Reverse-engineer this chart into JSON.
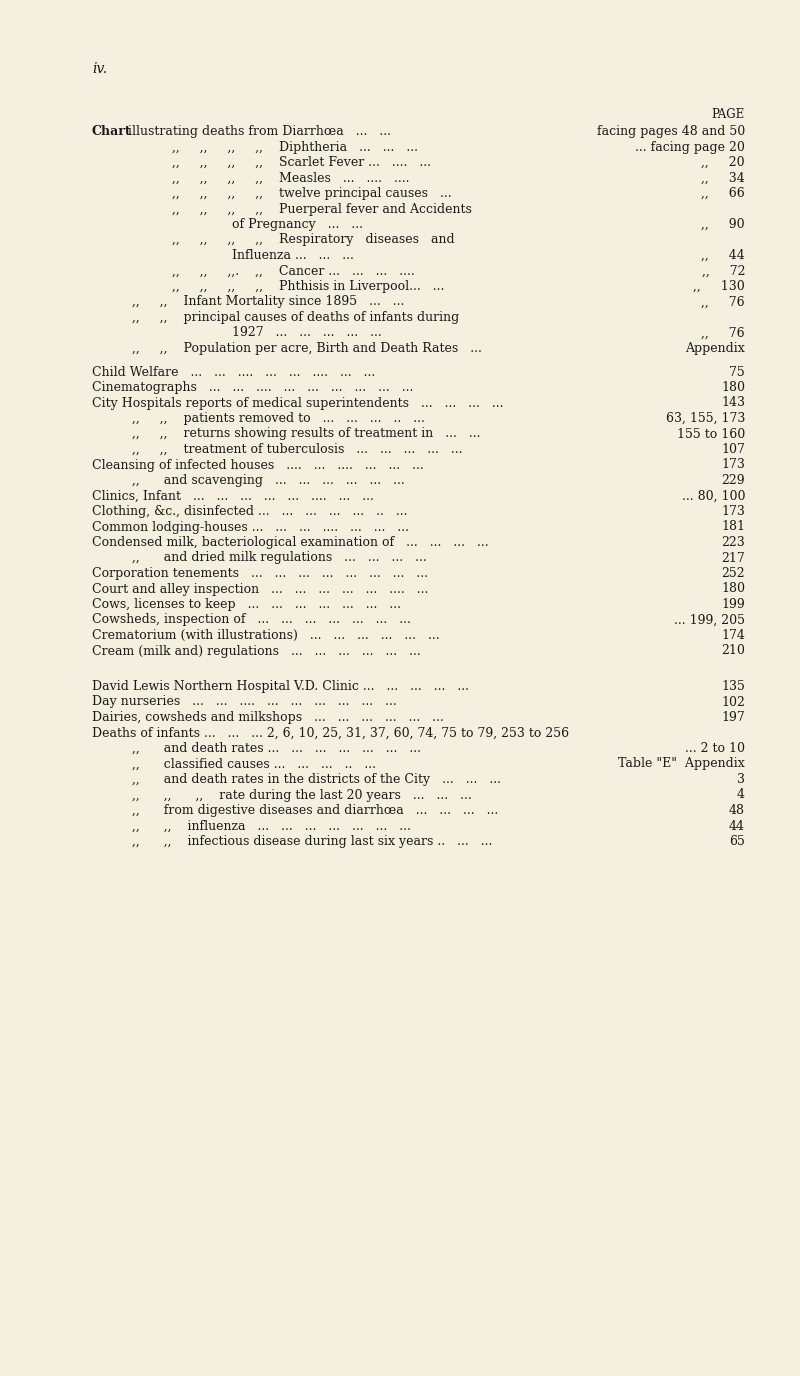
{
  "bg_color": "#f5efe0",
  "text_color": "#1a1a1a",
  "page_label": "iv.",
  "page_header": "PAGE",
  "lines": [
    {
      "type": "chart",
      "left1": "Chart",
      "left2": " illustrating deaths from Diarrhœa   ...   ...",
      "right": "facing pages 48 and 50"
    },
    {
      "type": "normal",
      "indent": 4,
      "left": ",,     ,,     ,,     ,,    Diphtheria   ...   ...   ...",
      "right": "... facing page 20"
    },
    {
      "type": "normal",
      "indent": 4,
      "left": ",,     ,,     ,,     ,,    Scarlet Fever ...   ....   ...",
      "right": ",,     20"
    },
    {
      "type": "normal",
      "indent": 4,
      "left": ",,     ,,     ,,     ,,    Measles   ...   ....   ....",
      "right": ",,     34"
    },
    {
      "type": "normal",
      "indent": 4,
      "left": ",,     ,,     ,,     ,,    twelve principal causes   ...",
      "right": ",,     66"
    },
    {
      "type": "normal",
      "indent": 4,
      "left": ",,     ,,     ,,     ,,    Puerperal fever and Accidents",
      "right": ""
    },
    {
      "type": "normal",
      "indent": 7,
      "left": "of Pregnancy   ...   ...",
      "right": ",,     90"
    },
    {
      "type": "normal",
      "indent": 4,
      "left": ",,     ,,     ,,     ,,    Respiratory   diseases   and",
      "right": ""
    },
    {
      "type": "normal",
      "indent": 7,
      "left": "Influenza ...   ...   ...",
      "right": ",,     44"
    },
    {
      "type": "normal",
      "indent": 4,
      "left": ",,     ,,     ,,.    ,,    Cancer ...   ...   ...   ....",
      "right": ",,     72"
    },
    {
      "type": "normal",
      "indent": 4,
      "left": ",,     ,,     ,,     ,,    Phthisis in Liverpool...   ...",
      "right": ",,     130"
    },
    {
      "type": "normal",
      "indent": 2,
      "left": ",,     ,,    Infant Mortality since 1895   ...   ...",
      "right": ",,     76"
    },
    {
      "type": "normal",
      "indent": 2,
      "left": ",,     ,,    principal causes of deaths of infants during",
      "right": ""
    },
    {
      "type": "normal",
      "indent": 7,
      "left": "1927   ...   ...   ...   ...   ...",
      "right": ",,     76"
    },
    {
      "type": "normal",
      "indent": 2,
      "left": ",,     ,,    Population per acre, Birth and Death Rates   ...",
      "right": "Appendix"
    },
    {
      "type": "blank"
    },
    {
      "type": "normal",
      "indent": 0,
      "left": "Child Welfare   ...   ...   ....   ...   ...   ....   ...   ...",
      "right": "75"
    },
    {
      "type": "normal",
      "indent": 0,
      "left": "Cinematographs   ...   ...   ....   ...   ...   ...   ...   ...   ...",
      "right": "180"
    },
    {
      "type": "normal",
      "indent": 0,
      "left": "City Hospitals reports of medical superintendents   ...   ...   ...   ...",
      "right": "143"
    },
    {
      "type": "normal",
      "indent": 2,
      "left": ",,     ,,    patients removed to   ...   ...   ...   ..   ...",
      "right": "63, 155, 173"
    },
    {
      "type": "normal",
      "indent": 2,
      "left": ",,     ,,    returns showing results of treatment in   ...   ...",
      "right": "155 to 160"
    },
    {
      "type": "normal",
      "indent": 2,
      "left": ",,     ,,    treatment of tuberculosis   ...   ...   ...   ...   ...",
      "right": "107"
    },
    {
      "type": "normal",
      "indent": 0,
      "left": "Cleansing of infected houses   ....   ...   ....   ...   ...   ...",
      "right": "173"
    },
    {
      "type": "normal",
      "indent": 2,
      "left": ",,      and scavenging   ...   ...   ...   ...   ...   ...",
      "right": "229"
    },
    {
      "type": "normal",
      "indent": 0,
      "left": "Clinics, Infant   ...   ...   ...   ...   ...   ....   ...   ...",
      "right": "... 80, 100"
    },
    {
      "type": "normal",
      "indent": 0,
      "left": "Clothing, &c., disinfected ...   ...   ...   ...   ...   ..   ...",
      "right": "173"
    },
    {
      "type": "normal",
      "indent": 0,
      "left": "Common lodging-houses ...   ...   ...   ....   ...   ...   ...",
      "right": "181"
    },
    {
      "type": "normal",
      "indent": 0,
      "left": "Condensed milk, bacteriological examination of   ...   ...   ...   ...",
      "right": "223"
    },
    {
      "type": "normal",
      "indent": 2,
      "left": ",,      and dried milk regulations   ...   ...   ...   ...",
      "right": "217"
    },
    {
      "type": "normal",
      "indent": 0,
      "left": "Corporation tenements   ...   ...   ...   ...   ...   ...   ...   ...",
      "right": "252"
    },
    {
      "type": "normal",
      "indent": 0,
      "left": "Court and alley inspection   ...   ...   ...   ...   ...   ....   ...",
      "right": "180"
    },
    {
      "type": "normal",
      "indent": 0,
      "left": "Cows, licenses to keep   ...   ...   ...   ...   ...   ...   ...",
      "right": "199"
    },
    {
      "type": "normal",
      "indent": 0,
      "left": "Cowsheds, inspection of   ...   ...   ...   ...   ...   ...   ...",
      "right": "... 199, 205"
    },
    {
      "type": "normal",
      "indent": 0,
      "left": "Crematorium (with illustrations)   ...   ...   ...   ...   ...   ...",
      "right": "174"
    },
    {
      "type": "normal",
      "indent": 0,
      "left": "Cream (milk and) regulations   ...   ...   ...   ...   ...   ...",
      "right": "210"
    },
    {
      "type": "gap"
    },
    {
      "type": "normal",
      "indent": 0,
      "left": "David Lewis Northern Hospital V.D. Clinic ...   ...   ...   ...   ...",
      "right": "135"
    },
    {
      "type": "normal",
      "indent": 0,
      "left": "Day nurseries   ...   ...   ....   ...   ...   ...   ...   ...   ...",
      "right": "102"
    },
    {
      "type": "normal",
      "indent": 0,
      "left": "Dairies, cowsheds and milkshops   ...   ...   ...   ...   ...   ...",
      "right": "197"
    },
    {
      "type": "normal",
      "indent": 0,
      "left": "Deaths of infants ...   ...   ... 2, 6, 10, 25, 31, 37, 60, 74, 75 to 79, 253 to 256",
      "right": ""
    },
    {
      "type": "normal",
      "indent": 2,
      "left": ",,      and death rates ...   ...   ...   ...   ...   ...   ...",
      "right": "... 2 to 10"
    },
    {
      "type": "normal",
      "indent": 2,
      "left": ",,      classified causes ...   ...   ...   ..   ...",
      "right": "Table \"E\"  Appendix"
    },
    {
      "type": "normal",
      "indent": 2,
      "left": ",,      and death rates in the districts of the City   ...   ...   ...",
      "right": "3"
    },
    {
      "type": "normal",
      "indent": 2,
      "left": ",,      ,,      ,,    rate during the last 20 years   ...   ...   ...",
      "right": "4"
    },
    {
      "type": "normal",
      "indent": 2,
      "left": ",,      from digestive diseases and diarrhœa   ...   ...   ...   ...",
      "right": "48"
    },
    {
      "type": "normal",
      "indent": 2,
      "left": ",,      ,,    influenza   ...   ...   ...   ...   ...   ...   ...",
      "right": "44"
    },
    {
      "type": "normal",
      "indent": 2,
      "left": ",,      ,,    infectious disease during last six years ..   ...   ...",
      "right": "65"
    }
  ]
}
